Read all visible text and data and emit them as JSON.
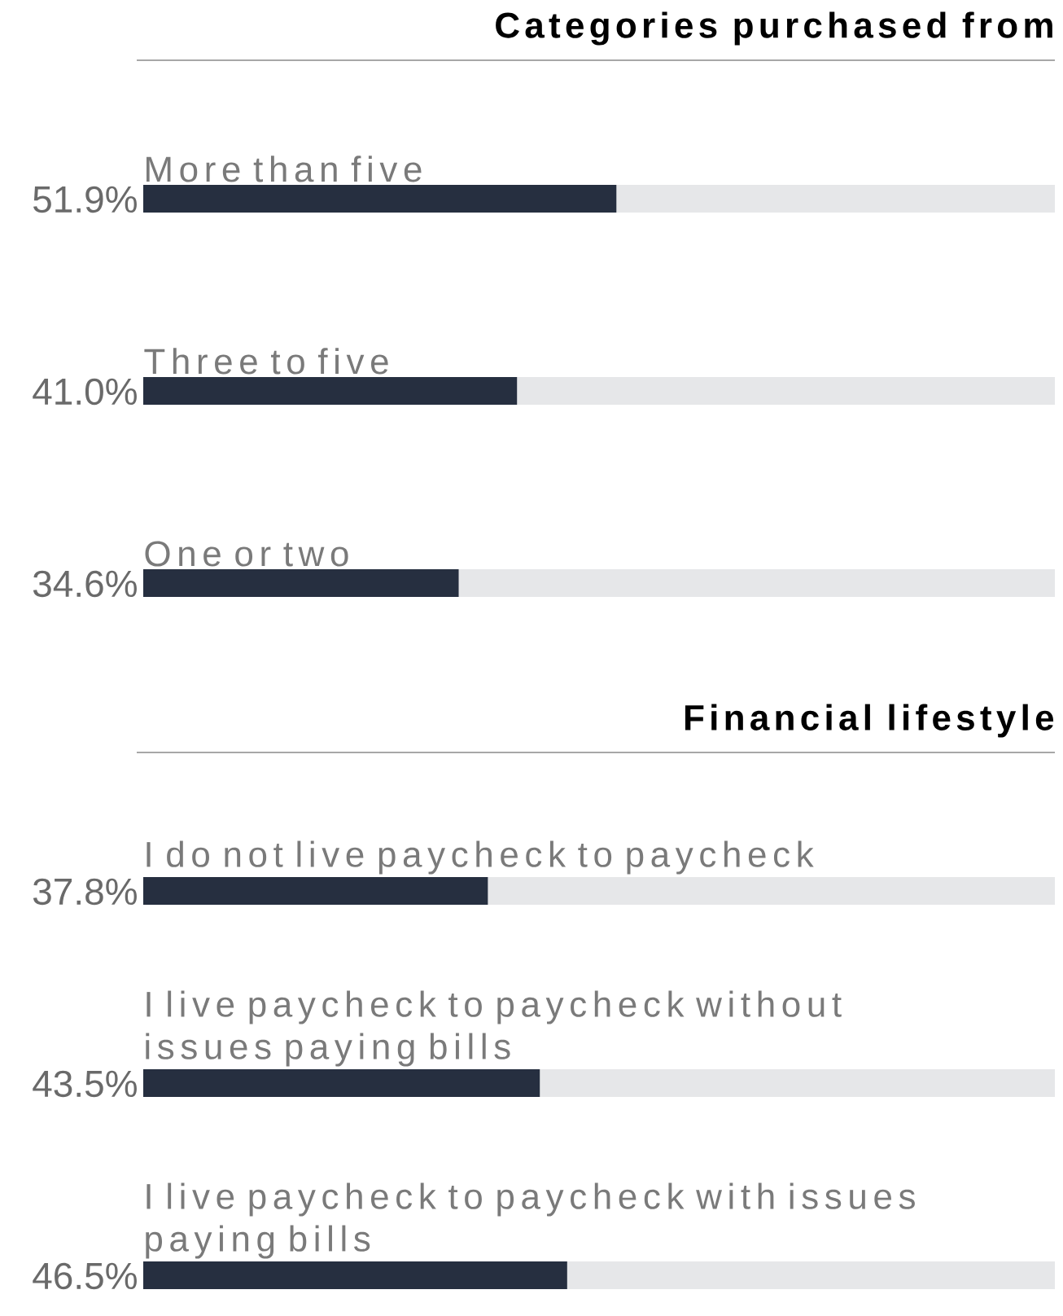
{
  "chart_data": [
    {
      "type": "bar",
      "orientation": "horizontal",
      "title": "Categories purchased from",
      "categories": [
        "More than five",
        "Three to five",
        "One or two"
      ],
      "values": [
        51.9,
        41.0,
        34.6
      ],
      "value_labels": [
        "51.9%",
        "41.0%",
        "34.6%"
      ],
      "color": "#262f40",
      "xlim": [
        0,
        100
      ]
    },
    {
      "type": "bar",
      "orientation": "horizontal",
      "title": "Financial lifestyle",
      "categories": [
        "I do not live paycheck to paycheck",
        "I live paycheck to paycheck without issues paying bills",
        "I live paycheck to paycheck with issues paying bills"
      ],
      "values": [
        37.8,
        43.5,
        46.5
      ],
      "value_labels": [
        "37.8%",
        "43.5%",
        "46.5%"
      ],
      "color": "#262f40",
      "xlim": [
        0,
        100
      ]
    }
  ]
}
